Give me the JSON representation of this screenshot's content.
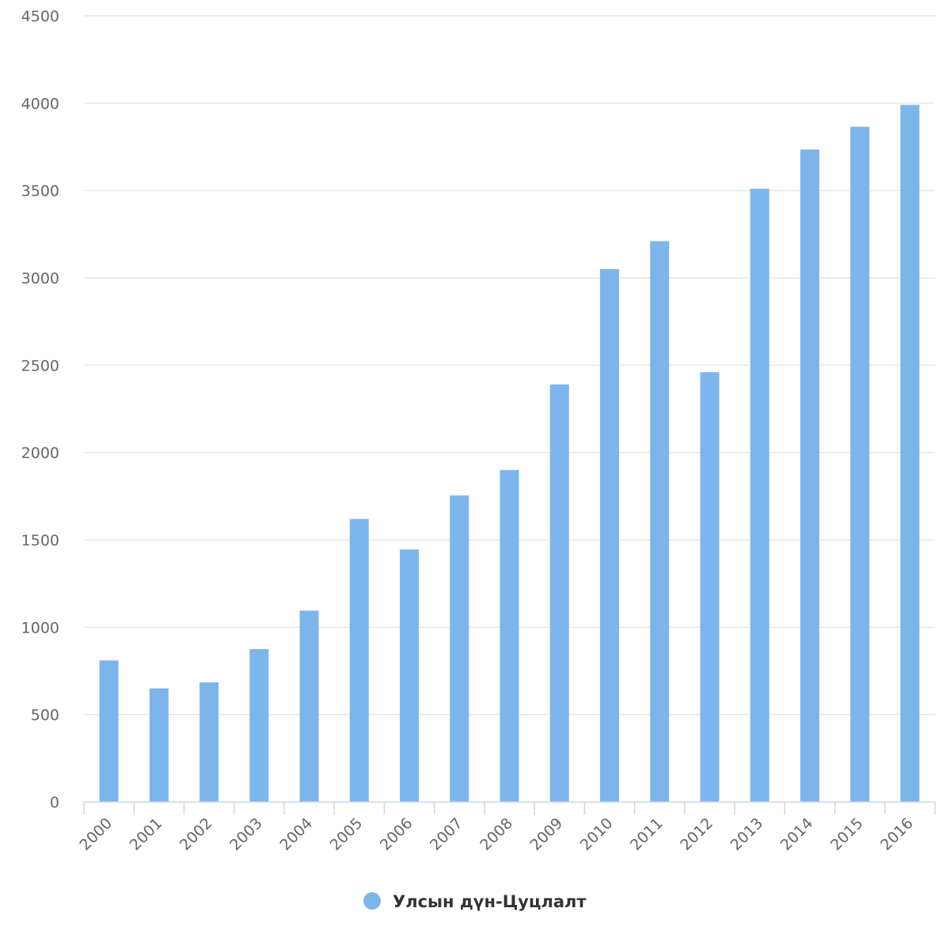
{
  "chart_data": {
    "type": "bar",
    "categories": [
      "2000",
      "2001",
      "2002",
      "2003",
      "2004",
      "2005",
      "2006",
      "2007",
      "2008",
      "2009",
      "2010",
      "2011",
      "2012",
      "2013",
      "2014",
      "2015",
      "2016"
    ],
    "series": [
      {
        "name": "Улсын дүн-Цуцлалт",
        "color": "#7cb5ec",
        "values": [
          810,
          650,
          685,
          875,
          1095,
          1620,
          1445,
          1755,
          1900,
          2390,
          3050,
          3210,
          2460,
          3510,
          3735,
          3865,
          3990
        ]
      }
    ],
    "yticks": [
      0,
      500,
      1000,
      1500,
      2000,
      2500,
      3000,
      3500,
      4000,
      4500
    ],
    "ylim": [
      0,
      4500
    ],
    "grid": true,
    "legend": "bottom-center"
  }
}
